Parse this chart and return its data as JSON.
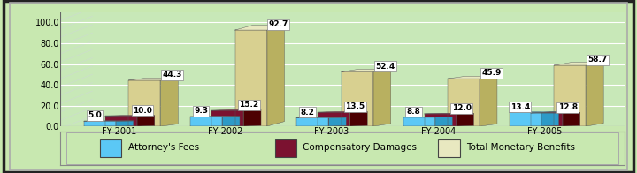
{
  "categories": [
    "FY 2001",
    "FY 2002",
    "FY 2003",
    "FY 2004",
    "FY 2005"
  ],
  "attorneys_fees": [
    5.0,
    9.3,
    8.2,
    8.8,
    13.4
  ],
  "compensatory_damages": [
    10.0,
    15.2,
    13.5,
    12.0,
    12.8
  ],
  "total_monetary_benefits": [
    44.3,
    92.7,
    52.4,
    45.9,
    58.7
  ],
  "ylim": [
    0,
    110
  ],
  "yticks": [
    0.0,
    20.0,
    40.0,
    60.0,
    80.0,
    100.0
  ],
  "color_attorneys": "#5bc8f5",
  "color_compensatory": "#7b1230",
  "color_total_front": "#d8d090",
  "color_total_side": "#b8b060",
  "color_total_top": "#e8e8c0",
  "bg_color": "#c8e8b0",
  "plot_bg": "#c8e8b8",
  "wall_bg": "#d0ecc0",
  "floor_color": "#b0b890",
  "label_attorneys": "Attorney's Fees",
  "label_compensatory": "Compensatory Damages",
  "label_total": "Total Monetary Benefits",
  "label_fontsize": 7.5,
  "value_fontsize": 6.5,
  "tick_fontsize": 7,
  "outer_border1": "#000000",
  "outer_border2": "#888888"
}
